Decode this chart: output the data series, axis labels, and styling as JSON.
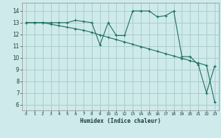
{
  "xlabel": "Humidex (Indice chaleur)",
  "background_color": "#ceeaea",
  "grid_color": "#aacccc",
  "line_color": "#1a6b5a",
  "x_ticks": [
    0,
    1,
    2,
    3,
    4,
    5,
    6,
    7,
    8,
    9,
    10,
    11,
    12,
    13,
    14,
    15,
    16,
    17,
    18,
    19,
    20,
    21,
    22,
    23
  ],
  "y_ticks": [
    6,
    7,
    8,
    9,
    10,
    11,
    12,
    13,
    14
  ],
  "ylim": [
    5.5,
    14.7
  ],
  "xlim": [
    -0.5,
    23.5
  ],
  "series1_x": [
    0,
    1,
    2,
    3,
    4,
    5,
    6,
    7,
    8,
    9,
    10,
    11,
    12,
    13,
    14,
    15,
    16,
    17,
    18,
    19,
    20,
    21,
    22,
    23
  ],
  "series1_y": [
    13,
    13,
    13,
    13,
    13,
    13,
    13.2,
    13.1,
    13,
    11.1,
    13,
    11.9,
    11.9,
    14.0,
    14.0,
    14.0,
    13.5,
    13.6,
    14.0,
    10.1,
    10.1,
    9.4,
    7.0,
    9.3
  ],
  "series2_x": [
    0,
    1,
    2,
    3,
    4,
    5,
    6,
    7,
    8,
    9,
    10,
    11,
    12,
    13,
    14,
    15,
    16,
    17,
    18,
    19,
    20,
    21,
    22,
    23
  ],
  "series2_y": [
    13.0,
    13.0,
    13.0,
    12.87,
    12.74,
    12.61,
    12.48,
    12.35,
    12.17,
    11.95,
    11.75,
    11.55,
    11.35,
    11.15,
    10.95,
    10.75,
    10.55,
    10.35,
    10.15,
    9.95,
    9.75,
    9.55,
    9.35,
    6.2
  ]
}
